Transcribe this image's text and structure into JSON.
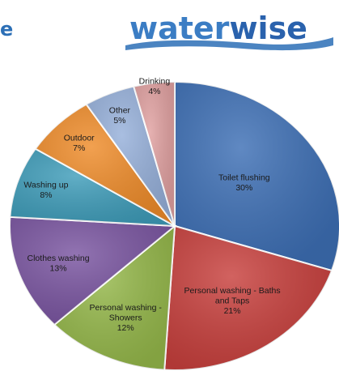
{
  "header": {
    "fragment": "e",
    "logo_text_part1": "water",
    "logo_text_part2": "wise",
    "logo_color_1": "#3b7dc4",
    "logo_color_2": "#2a62ad"
  },
  "chart_data": {
    "type": "pie",
    "categories": [
      "Toilet flushing",
      "Personal washing - Baths and Taps",
      "Personal washing - Showers",
      "Clothes washing",
      "Washing up",
      "Outdoor",
      "Other",
      "Drinking"
    ],
    "values": [
      30,
      21,
      12,
      13,
      8,
      7,
      5,
      4
    ],
    "labels": [
      "30%",
      "21%",
      "12%",
      "13%",
      "8%",
      "7%",
      "5%",
      "4%"
    ],
    "colors": [
      "#3d6fb5",
      "#c8403d",
      "#95b84a",
      "#7a55a1",
      "#3f9dba",
      "#ef8c2a",
      "#96b0da",
      "#e0a0a0"
    ],
    "title": "",
    "legend": "none"
  }
}
